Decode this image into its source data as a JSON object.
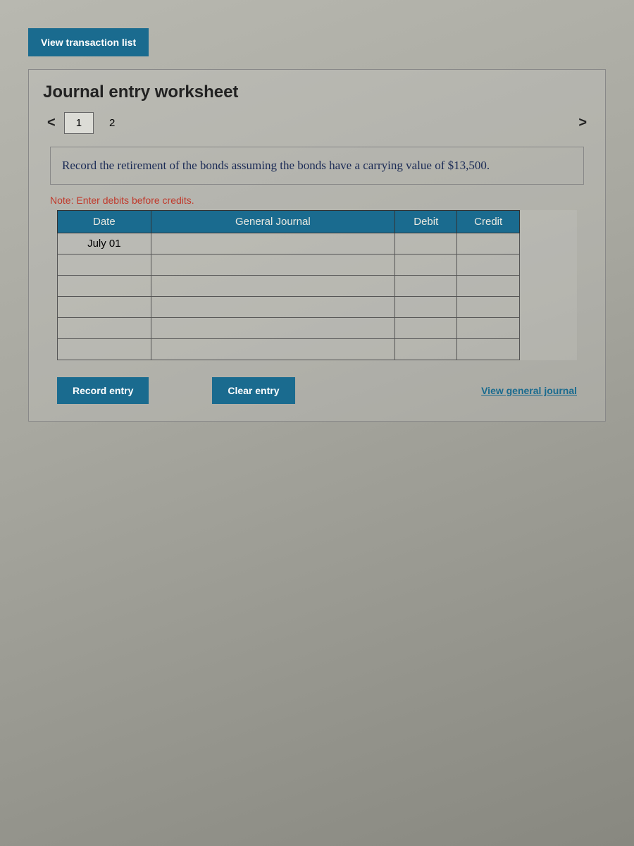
{
  "top": {
    "view_transaction_label": "View transaction list"
  },
  "worksheet": {
    "title": "Journal entry worksheet",
    "nav": {
      "prev": "<",
      "next": ">",
      "tabs": [
        "1",
        "2"
      ]
    },
    "instruction": "Record the retirement of the bonds assuming the bonds have a carrying value of $13,500.",
    "note": "Note: Enter debits before credits.",
    "table": {
      "headers": {
        "date": "Date",
        "journal": "General Journal",
        "debit": "Debit",
        "credit": "Credit"
      },
      "rows": [
        {
          "date": "July 01",
          "journal": "",
          "debit": "",
          "credit": ""
        },
        {
          "date": "",
          "journal": "",
          "debit": "",
          "credit": ""
        },
        {
          "date": "",
          "journal": "",
          "debit": "",
          "credit": ""
        },
        {
          "date": "",
          "journal": "",
          "debit": "",
          "credit": ""
        },
        {
          "date": "",
          "journal": "",
          "debit": "",
          "credit": ""
        },
        {
          "date": "",
          "journal": "",
          "debit": "",
          "credit": ""
        }
      ]
    },
    "buttons": {
      "record": "Record entry",
      "clear": "Clear entry",
      "view_general": "View general journal"
    }
  },
  "colors": {
    "primary": "#1a6b8f",
    "note_color": "#c0392b",
    "instruction_color": "#1a2a55",
    "border": "#555"
  }
}
